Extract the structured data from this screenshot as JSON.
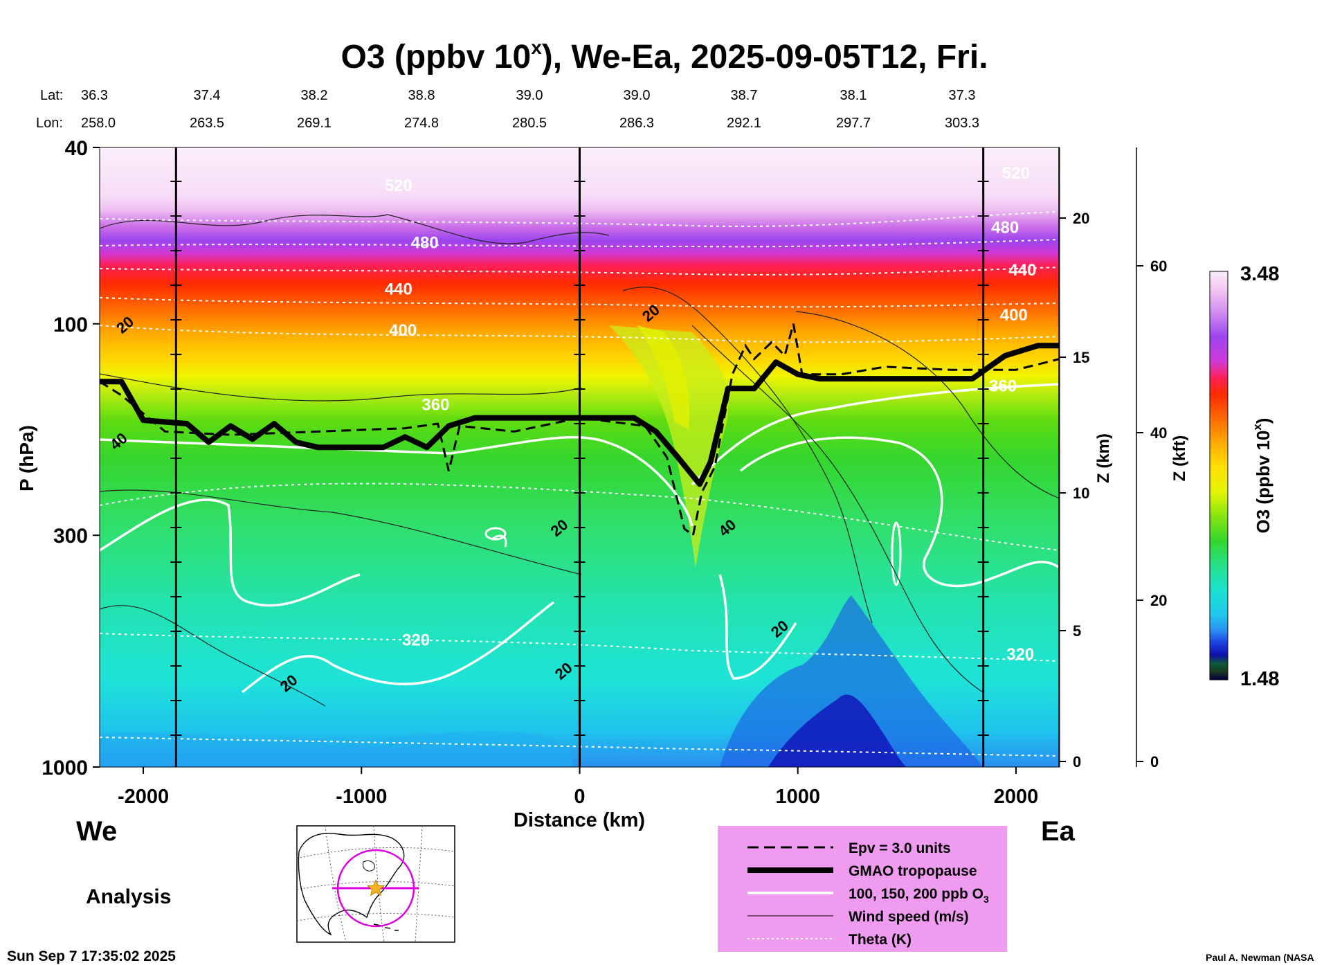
{
  "chart_data": {
    "type": "heatmap",
    "title_main": "O3 (ppbv 10",
    "title_sup": "x",
    "title_rest": "), We-Ea, 2025-09-05T12, Fri.",
    "lat_label": "Lat:",
    "lon_label": "Lon:",
    "lats": [
      "36.3",
      "37.4",
      "38.2",
      "38.8",
      "39.0",
      "39.0",
      "38.7",
      "38.1",
      "37.3"
    ],
    "lons": [
      "258.0",
      "263.5",
      "269.1",
      "274.8",
      "280.5",
      "286.3",
      "292.1",
      "297.7",
      "303.3"
    ],
    "xlabel": "Distance (km)",
    "xlim": [
      -2200,
      2200
    ],
    "xticks": [
      -2000,
      -1000,
      0,
      1000,
      2000
    ],
    "xtick_labels": [
      "-2000",
      "-1000",
      "0",
      "1000",
      "2000"
    ],
    "section_lines_km": [
      -1850,
      0,
      1850
    ],
    "ylabel": "P (hPa)",
    "ylim": [
      1000,
      40
    ],
    "yticks": [
      1000,
      300,
      100,
      40
    ],
    "ytick_labels": [
      "1000",
      "300",
      "100",
      "40"
    ],
    "z_km_label": "Z (km)",
    "z_km_ticks": [
      0,
      5,
      10,
      15,
      20
    ],
    "z_km_tick_labels": [
      "0",
      "5",
      "10",
      "15",
      "20"
    ],
    "z_kft_label": "Z (kft)",
    "z_kft_ticks": [
      0,
      20,
      40,
      60
    ],
    "z_kft_tick_labels": [
      "0",
      "20",
      "40",
      "60"
    ],
    "colorbar": {
      "label": "O3 (ppbv 10",
      "label_sup": "x",
      "label_end": ")",
      "max_label": "3.48",
      "min_label": "1.48",
      "max": 3.48,
      "min": 1.48
    },
    "tropopause": [
      [
        -2200,
        135
      ],
      [
        -2100,
        135
      ],
      [
        -2000,
        165
      ],
      [
        -1800,
        168
      ],
      [
        -1700,
        185
      ],
      [
        -1600,
        170
      ],
      [
        -1500,
        182
      ],
      [
        -1400,
        168
      ],
      [
        -1300,
        185
      ],
      [
        -1200,
        190
      ],
      [
        -900,
        190
      ],
      [
        -800,
        180
      ],
      [
        -700,
        190
      ],
      [
        -600,
        170
      ],
      [
        -480,
        163
      ],
      [
        0,
        163
      ],
      [
        250,
        163
      ],
      [
        350,
        175
      ],
      [
        450,
        200
      ],
      [
        550,
        230
      ],
      [
        600,
        205
      ],
      [
        680,
        140
      ],
      [
        800,
        140
      ],
      [
        900,
        122
      ],
      [
        1000,
        130
      ],
      [
        1100,
        133
      ],
      [
        1800,
        133
      ],
      [
        1950,
        118
      ],
      [
        2100,
        112
      ],
      [
        2200,
        112
      ]
    ],
    "epv_line": [
      [
        -2200,
        135
      ],
      [
        -2100,
        145
      ],
      [
        -1900,
        175
      ],
      [
        -1600,
        178
      ],
      [
        -1200,
        175
      ],
      [
        -800,
        172
      ],
      [
        -650,
        168
      ],
      [
        -600,
        215
      ],
      [
        -550,
        170
      ],
      [
        -300,
        175
      ],
      [
        0,
        163
      ],
      [
        300,
        170
      ],
      [
        400,
        200
      ],
      [
        480,
        290
      ],
      [
        520,
        300
      ],
      [
        560,
        240
      ],
      [
        620,
        210
      ],
      [
        700,
        130
      ],
      [
        760,
        112
      ],
      [
        800,
        120
      ],
      [
        880,
        110
      ],
      [
        940,
        118
      ],
      [
        980,
        100
      ],
      [
        1020,
        130
      ],
      [
        1200,
        130
      ],
      [
        1400,
        125
      ],
      [
        1700,
        127
      ],
      [
        2000,
        127
      ],
      [
        2200,
        120
      ]
    ],
    "theta_labels": [
      {
        "text": "520",
        "x": -830,
        "p": 49
      },
      {
        "text": "480",
        "x": -710,
        "p": 66
      },
      {
        "text": "440",
        "x": -830,
        "p": 84
      },
      {
        "text": "400",
        "x": -810,
        "p": 104
      },
      {
        "text": "360",
        "x": -660,
        "p": 153
      },
      {
        "text": "320",
        "x": -750,
        "p": 520
      },
      {
        "text": "520",
        "x": 2000,
        "p": 46
      },
      {
        "text": "480",
        "x": 1950,
        "p": 61
      },
      {
        "text": "440",
        "x": 2030,
        "p": 76
      },
      {
        "text": "400",
        "x": 1990,
        "p": 96
      },
      {
        "text": "360",
        "x": 1940,
        "p": 139
      },
      {
        "text": "320",
        "x": 2020,
        "p": 560
      }
    ],
    "wind_labels": [
      {
        "text": "20",
        "x": -2080,
        "p": 101
      },
      {
        "text": "40",
        "x": -2110,
        "p": 185
      },
      {
        "text": "20",
        "x": 330,
        "p": 95
      },
      {
        "text": "20",
        "x": -90,
        "p": 290
      },
      {
        "text": "40",
        "x": 680,
        "p": 290
      },
      {
        "text": "20",
        "x": -1330,
        "p": 650
      },
      {
        "text": "20",
        "x": -70,
        "p": 610
      },
      {
        "text": "20",
        "x": 920,
        "p": 490
      }
    ],
    "region_left": "We",
    "region_right": "Ea",
    "analysis_label": "Analysis",
    "legend": [
      {
        "style": "dashed",
        "label": "Epv = 3.0 units"
      },
      {
        "style": "thick",
        "label": "GMAO tropopause"
      },
      {
        "style": "white",
        "label": "100, 150, 200 ppb O",
        "sub": "3"
      },
      {
        "style": "thin",
        "label": "Wind speed (m/s)"
      },
      {
        "style": "dotted",
        "label": "Theta (K)"
      }
    ],
    "legend_bg": "#ef9bef",
    "timestamp": "Sun Sep  7 17:35:02 2025",
    "credit": "Paul A. Newman (NASA"
  }
}
